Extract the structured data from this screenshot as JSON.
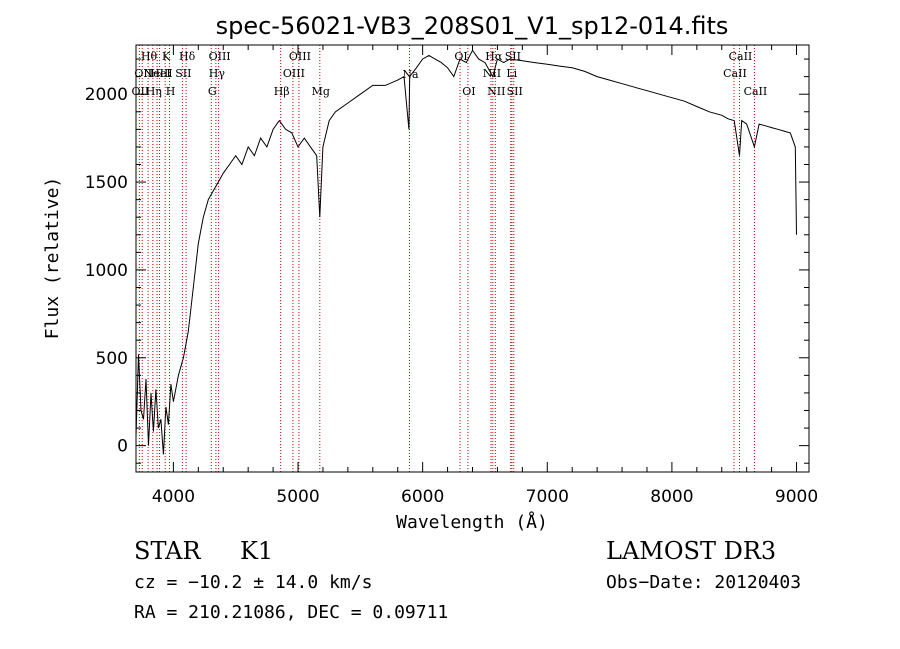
{
  "chart_data": {
    "type": "line",
    "title": "spec-56021-VB3_208S01_V1_sp12-014.fits",
    "xlabel": "Wavelength (Å)",
    "ylabel": "Flux (relative)",
    "xlim": [
      3700,
      9100
    ],
    "ylim": [
      -150,
      2280
    ],
    "xticks": [
      4000,
      5000,
      6000,
      7000,
      8000,
      9000
    ],
    "yticks": [
      0,
      500,
      1000,
      1500,
      2000
    ],
    "grid": false,
    "series": [
      {
        "name": "flux",
        "x": [
          3700,
          3720,
          3740,
          3760,
          3780,
          3800,
          3820,
          3840,
          3860,
          3880,
          3900,
          3920,
          3940,
          3960,
          3980,
          4000,
          4040,
          4080,
          4120,
          4160,
          4200,
          4240,
          4280,
          4320,
          4360,
          4400,
          4450,
          4500,
          4550,
          4600,
          4650,
          4700,
          4750,
          4800,
          4850,
          4900,
          4950,
          5000,
          5050,
          5100,
          5150,
          5175,
          5200,
          5250,
          5300,
          5400,
          5500,
          5600,
          5700,
          5800,
          5850,
          5890,
          5896,
          5950,
          6000,
          6050,
          6100,
          6150,
          6200,
          6250,
          6300,
          6350,
          6400,
          6450,
          6500,
          6563,
          6600,
          6650,
          6700,
          6800,
          6900,
          7000,
          7100,
          7200,
          7300,
          7400,
          7500,
          7600,
          7700,
          7800,
          7900,
          8000,
          8100,
          8200,
          8300,
          8400,
          8450,
          8500,
          8542,
          8560,
          8600,
          8662,
          8700,
          8750,
          8800,
          8850,
          8900,
          8950,
          8990,
          9000
        ],
        "values": [
          50,
          520,
          200,
          150,
          380,
          0,
          300,
          80,
          320,
          100,
          150,
          -50,
          220,
          120,
          350,
          250,
          400,
          500,
          650,
          900,
          1150,
          1300,
          1400,
          1450,
          1500,
          1550,
          1600,
          1650,
          1600,
          1700,
          1650,
          1750,
          1700,
          1800,
          1850,
          1800,
          1780,
          1700,
          1750,
          1700,
          1650,
          1300,
          1700,
          1850,
          1900,
          1950,
          2000,
          2050,
          2050,
          2080,
          2100,
          1800,
          2100,
          2150,
          2200,
          2220,
          2200,
          2180,
          2150,
          2100,
          2200,
          2180,
          2250,
          2200,
          2180,
          2100,
          2200,
          2180,
          2200,
          2190,
          2180,
          2170,
          2160,
          2150,
          2130,
          2100,
          2080,
          2060,
          2040,
          2020,
          2000,
          1980,
          1960,
          1930,
          1900,
          1880,
          1860,
          1850,
          1650,
          1850,
          1830,
          1700,
          1830,
          1820,
          1810,
          1800,
          1790,
          1780,
          1700,
          1200
        ]
      }
    ],
    "lines": [
      {
        "wl": 3727,
        "label": "OII",
        "row": 2
      },
      {
        "wl": 3750,
        "label": "OII",
        "row": 1
      },
      {
        "wl": 3797,
        "label": "Hθ",
        "row": 0
      },
      {
        "wl": 3835,
        "label": "Hη",
        "row": 2
      },
      {
        "wl": 3869,
        "label": "NeIII",
        "row": 1
      },
      {
        "wl": 3889,
        "label": "HeI",
        "row": 1
      },
      {
        "wl": 3934,
        "label": "K",
        "row": 0
      },
      {
        "wl": 3969,
        "label": "H",
        "row": 2
      },
      {
        "wl": 4072,
        "label": "SII",
        "row": 1
      },
      {
        "wl": 4102,
        "label": "Hδ",
        "row": 0
      },
      {
        "wl": 4304,
        "label": "G",
        "row": 2
      },
      {
        "wl": 4341,
        "label": "Hγ",
        "row": 1
      },
      {
        "wl": 4363,
        "label": "OIII",
        "row": 0
      },
      {
        "wl": 4861,
        "label": "Hβ",
        "row": 2
      },
      {
        "wl": 4959,
        "label": "OIII",
        "row": 1
      },
      {
        "wl": 5007,
        "label": "OIII",
        "row": 0
      },
      {
        "wl": 5175,
        "label": "Mg",
        "row": 2
      },
      {
        "wl": 5894,
        "label": "Na",
        "row": 3
      },
      {
        "wl": 6300,
        "label": "OI",
        "row": 0
      },
      {
        "wl": 6363,
        "label": "OI",
        "row": 2
      },
      {
        "wl": 6548,
        "label": "NII",
        "row": 1
      },
      {
        "wl": 6563,
        "label": "Hα",
        "row": 0
      },
      {
        "wl": 6583,
        "label": "NII",
        "row": 2
      },
      {
        "wl": 6707,
        "label": "Li",
        "row": 1
      },
      {
        "wl": 6716,
        "label": "SII",
        "row": 0
      },
      {
        "wl": 6731,
        "label": "SII",
        "row": 2
      },
      {
        "wl": 8498,
        "label": "CaII",
        "row": 1
      },
      {
        "wl": 8542,
        "label": "CaII",
        "row": 0
      },
      {
        "wl": 8662,
        "label": "CaII",
        "row": 2
      }
    ]
  },
  "info": {
    "class_label": "STAR",
    "subclass_label": "K1",
    "survey_label": "LAMOST DR3",
    "redshift_text": "cz = −10.2 ± 14.0 km/s",
    "obs_date_text": "Obs−Date: 20120403",
    "coords_text": "RA = 210.21086, DEC =   0.09711"
  },
  "colors": {
    "spectrum": "#000000",
    "line_marker": "#cc0000",
    "axis": "#000000"
  }
}
